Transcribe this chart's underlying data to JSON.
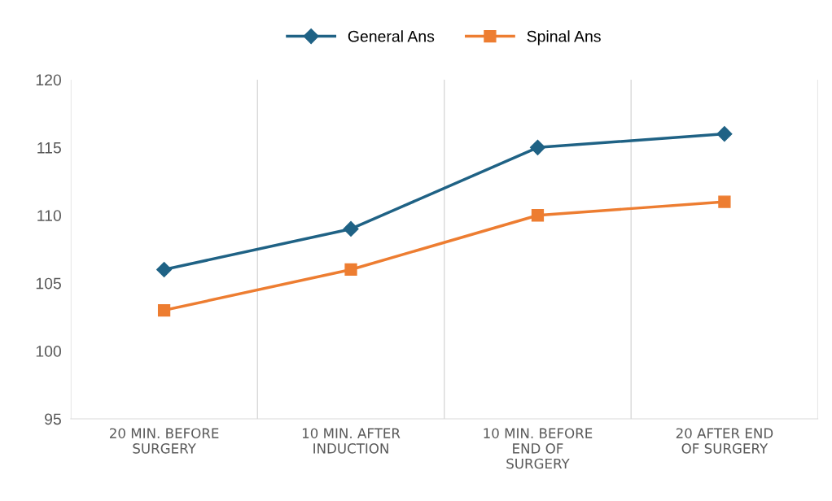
{
  "chart_data": {
    "type": "line",
    "categories": [
      "20 MIN. BEFORE\nSURGERY",
      "10 MIN. AFTER\nINDUCTION",
      "10 MIN. BEFORE\nEND OF\nSURGERY",
      "20 AFTER END\nOF SURGERY"
    ],
    "series": [
      {
        "name": "General Ans",
        "color": "#1f6285",
        "marker": "diamond",
        "values": [
          106,
          109,
          115,
          116
        ]
      },
      {
        "name": "Spinal Ans",
        "color": "#ed7d31",
        "marker": "square",
        "values": [
          103,
          106,
          110,
          111
        ]
      }
    ],
    "ylim": [
      95,
      120
    ],
    "yticks": [
      95,
      100,
      105,
      110,
      115,
      120
    ],
    "grid": "x",
    "legend": "top",
    "line_style": "solid"
  }
}
